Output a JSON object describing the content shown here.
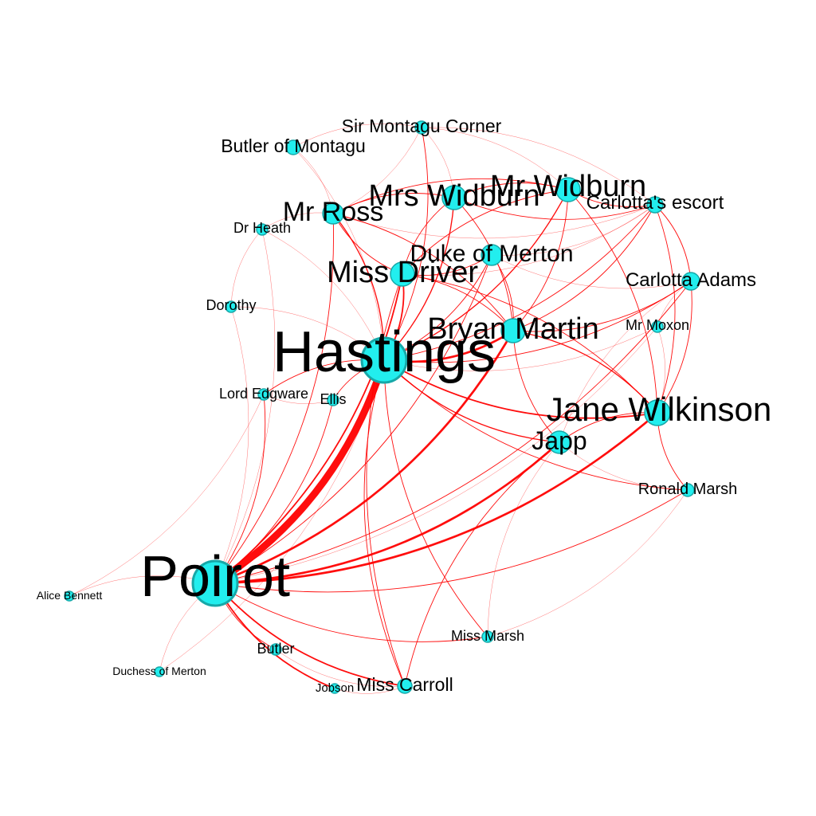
{
  "colors": {
    "edge": "#ff0000",
    "node_fill": "#22eeee",
    "node_stroke": "#17a8a8",
    "label": "#000000"
  },
  "nodes": [
    {
      "id": "poirot",
      "label": "Poirot",
      "weight": 10
    },
    {
      "id": "hastings",
      "label": "Hastings",
      "weight": 9
    },
    {
      "id": "jane",
      "label": "Jane Wilkinson",
      "weight": 6
    },
    {
      "id": "bryan",
      "label": "Bryan Martin",
      "weight": 5
    },
    {
      "id": "mrwidburn",
      "label": "Mr Widburn",
      "weight": 5
    },
    {
      "id": "mrswidburn",
      "label": "Mrs Widburn",
      "weight": 5
    },
    {
      "id": "mrross",
      "label": "Mr Ross",
      "weight": 5
    },
    {
      "id": "missdriver",
      "label": "Miss Driver",
      "weight": 5
    },
    {
      "id": "japp",
      "label": "Japp",
      "weight": 4
    },
    {
      "id": "duke",
      "label": "Duke of Merton",
      "weight": 4
    },
    {
      "id": "carlotta",
      "label": "Carlotta Adams",
      "weight": 3
    },
    {
      "id": "escort",
      "label": "Carlotta's escort",
      "weight": 3
    },
    {
      "id": "sirmontagu",
      "label": "Sir Montagu Corner",
      "weight": 3
    },
    {
      "id": "butlermontagu",
      "label": "Butler of Montagu",
      "weight": 3
    },
    {
      "id": "misscarroll",
      "label": "Miss Carroll",
      "weight": 3
    },
    {
      "id": "ronald",
      "label": "Ronald Marsh",
      "weight": 3
    },
    {
      "id": "mrmoxon",
      "label": "Mr Moxon",
      "weight": 2
    },
    {
      "id": "drheath",
      "label": "Dr Heath",
      "weight": 2
    },
    {
      "id": "dorothy",
      "label": "Dorothy",
      "weight": 2
    },
    {
      "id": "lordedgware",
      "label": "Lord Edgware",
      "weight": 2
    },
    {
      "id": "ellis",
      "label": "Ellis",
      "weight": 2
    },
    {
      "id": "missmarsh",
      "label": "Miss Marsh",
      "weight": 2
    },
    {
      "id": "butler",
      "label": "Butler",
      "weight": 2
    },
    {
      "id": "jobson",
      "label": "Jobson",
      "weight": 1
    },
    {
      "id": "alice",
      "label": "Alice Bennett",
      "weight": 1
    },
    {
      "id": "duchess",
      "label": "Duchess of Merton",
      "weight": 1
    }
  ],
  "edges": [
    {
      "source": "poirot",
      "target": "hastings",
      "weight": 10
    },
    {
      "source": "poirot",
      "target": "jane",
      "weight": 3
    },
    {
      "source": "poirot",
      "target": "japp",
      "weight": 3
    },
    {
      "source": "poirot",
      "target": "bryan",
      "weight": 3
    },
    {
      "source": "poirot",
      "target": "missdriver",
      "weight": 2
    },
    {
      "source": "poirot",
      "target": "ronald",
      "weight": 1
    },
    {
      "source": "poirot",
      "target": "carlotta",
      "weight": 1
    },
    {
      "source": "poirot",
      "target": "misscarroll",
      "weight": 2
    },
    {
      "source": "poirot",
      "target": "butler",
      "weight": 1
    },
    {
      "source": "poirot",
      "target": "jobson",
      "weight": 2
    },
    {
      "source": "poirot",
      "target": "alice",
      "weight": 0.5
    },
    {
      "source": "poirot",
      "target": "duchess",
      "weight": 0.5
    },
    {
      "source": "poirot",
      "target": "duke",
      "weight": 1
    },
    {
      "source": "poirot",
      "target": "lordedgware",
      "weight": 1
    },
    {
      "source": "poirot",
      "target": "ellis",
      "weight": 1
    },
    {
      "source": "poirot",
      "target": "mrross",
      "weight": 1
    },
    {
      "source": "poirot",
      "target": "missmarsh",
      "weight": 1
    },
    {
      "source": "poirot",
      "target": "dorothy",
      "weight": 0.5
    },
    {
      "source": "poirot",
      "target": "drheath",
      "weight": 0.5
    },
    {
      "source": "poirot",
      "target": "mrmoxon",
      "weight": 0.5
    },
    {
      "source": "hastings",
      "target": "jane",
      "weight": 2
    },
    {
      "source": "hastings",
      "target": "bryan",
      "weight": 3
    },
    {
      "source": "hastings",
      "target": "mrwidburn",
      "weight": 1.5
    },
    {
      "source": "hastings",
      "target": "mrswidburn",
      "weight": 1.5
    },
    {
      "source": "hastings",
      "target": "mrross",
      "weight": 1.5
    },
    {
      "source": "hastings",
      "target": "missdriver",
      "weight": 2
    },
    {
      "source": "hastings",
      "target": "japp",
      "weight": 1.5
    },
    {
      "source": "hastings",
      "target": "duke",
      "weight": 1
    },
    {
      "source": "hastings",
      "target": "carlotta",
      "weight": 1
    },
    {
      "source": "hastings",
      "target": "escort",
      "weight": 1
    },
    {
      "source": "hastings",
      "target": "misscarroll",
      "weight": 1
    },
    {
      "source": "hastings",
      "target": "missmarsh",
      "weight": 1
    },
    {
      "source": "hastings",
      "target": "ellis",
      "weight": 1
    },
    {
      "source": "hastings",
      "target": "lordedgware",
      "weight": 1
    },
    {
      "source": "hastings",
      "target": "sirmontagu",
      "weight": 1
    },
    {
      "source": "hastings",
      "target": "butlermontagu",
      "weight": 0.5
    },
    {
      "source": "hastings",
      "target": "drheath",
      "weight": 0.5
    },
    {
      "source": "hastings",
      "target": "ronald",
      "weight": 1
    },
    {
      "source": "hastings",
      "target": "mrmoxon",
      "weight": 0.5
    },
    {
      "source": "hastings",
      "target": "dorothy",
      "weight": 0.5
    },
    {
      "source": "jane",
      "target": "bryan",
      "weight": 1.5
    },
    {
      "source": "jane",
      "target": "japp",
      "weight": 1
    },
    {
      "source": "jane",
      "target": "carlotta",
      "weight": 1
    },
    {
      "source": "jane",
      "target": "escort",
      "weight": 1
    },
    {
      "source": "jane",
      "target": "mrwidburn",
      "weight": 1
    },
    {
      "source": "jane",
      "target": "missdriver",
      "weight": 1
    },
    {
      "source": "jane",
      "target": "ronald",
      "weight": 1
    },
    {
      "source": "jane",
      "target": "mrmoxon",
      "weight": 0.5
    },
    {
      "source": "bryan",
      "target": "mrwidburn",
      "weight": 1
    },
    {
      "source": "bryan",
      "target": "mrswidburn",
      "weight": 1
    },
    {
      "source": "bryan",
      "target": "carlotta",
      "weight": 1
    },
    {
      "source": "bryan",
      "target": "escort",
      "weight": 1
    },
    {
      "source": "bryan",
      "target": "duke",
      "weight": 1
    },
    {
      "source": "bryan",
      "target": "mrross",
      "weight": 1
    },
    {
      "source": "bryan",
      "target": "missdriver",
      "weight": 1
    },
    {
      "source": "bryan",
      "target": "japp",
      "weight": 1
    },
    {
      "source": "mrwidburn",
      "target": "mrswidburn",
      "weight": 1
    },
    {
      "source": "mrwidburn",
      "target": "mrross",
      "weight": 1
    },
    {
      "source": "mrwidburn",
      "target": "escort",
      "weight": 1
    },
    {
      "source": "mrwidburn",
      "target": "missdriver",
      "weight": 1
    },
    {
      "source": "mrwidburn",
      "target": "sirmontagu",
      "weight": 0.5
    },
    {
      "source": "mrswidburn",
      "target": "mrross",
      "weight": 1
    },
    {
      "source": "mrswidburn",
      "target": "missdriver",
      "weight": 1
    },
    {
      "source": "mrswidburn",
      "target": "escort",
      "weight": 1
    },
    {
      "source": "mrswidburn",
      "target": "sirmontagu",
      "weight": 0.5
    },
    {
      "source": "mrross",
      "target": "missdriver",
      "weight": 1
    },
    {
      "source": "mrross",
      "target": "sirmontagu",
      "weight": 0.5
    },
    {
      "source": "mrross",
      "target": "butlermontagu",
      "weight": 0.5
    },
    {
      "source": "mrross",
      "target": "drheath",
      "weight": 0.5
    },
    {
      "source": "mrross",
      "target": "escort",
      "weight": 0.5
    },
    {
      "source": "missdriver",
      "target": "duke",
      "weight": 1
    },
    {
      "source": "missdriver",
      "target": "misscarroll",
      "weight": 1
    },
    {
      "source": "missdriver",
      "target": "escort",
      "weight": 0.5
    },
    {
      "source": "duke",
      "target": "escort",
      "weight": 0.5
    },
    {
      "source": "duke",
      "target": "carlotta",
      "weight": 0.5
    },
    {
      "source": "carlotta",
      "target": "escort",
      "weight": 1
    },
    {
      "source": "carlotta",
      "target": "japp",
      "weight": 0.5
    },
    {
      "source": "carlotta",
      "target": "mrmoxon",
      "weight": 0.5
    },
    {
      "source": "escort",
      "target": "sirmontagu",
      "weight": 0.5
    },
    {
      "source": "japp",
      "target": "misscarroll",
      "weight": 1
    },
    {
      "source": "japp",
      "target": "ronald",
      "weight": 0.5
    },
    {
      "source": "japp",
      "target": "missmarsh",
      "weight": 0.5
    },
    {
      "source": "sirmontagu",
      "target": "butlermontagu",
      "weight": 0.5
    },
    {
      "source": "drheath",
      "target": "dorothy",
      "weight": 0.5
    },
    {
      "source": "lordedgware",
      "target": "ellis",
      "weight": 0.5
    },
    {
      "source": "butler",
      "target": "misscarroll",
      "weight": 0.5
    },
    {
      "source": "jobson",
      "target": "misscarroll",
      "weight": 0.5
    },
    {
      "source": "missmarsh",
      "target": "ronald",
      "weight": 0.5
    },
    {
      "source": "alice",
      "target": "lordedgware",
      "weight": 0.5
    },
    {
      "source": "duchess",
      "target": "hastings",
      "weight": 0.5
    }
  ]
}
